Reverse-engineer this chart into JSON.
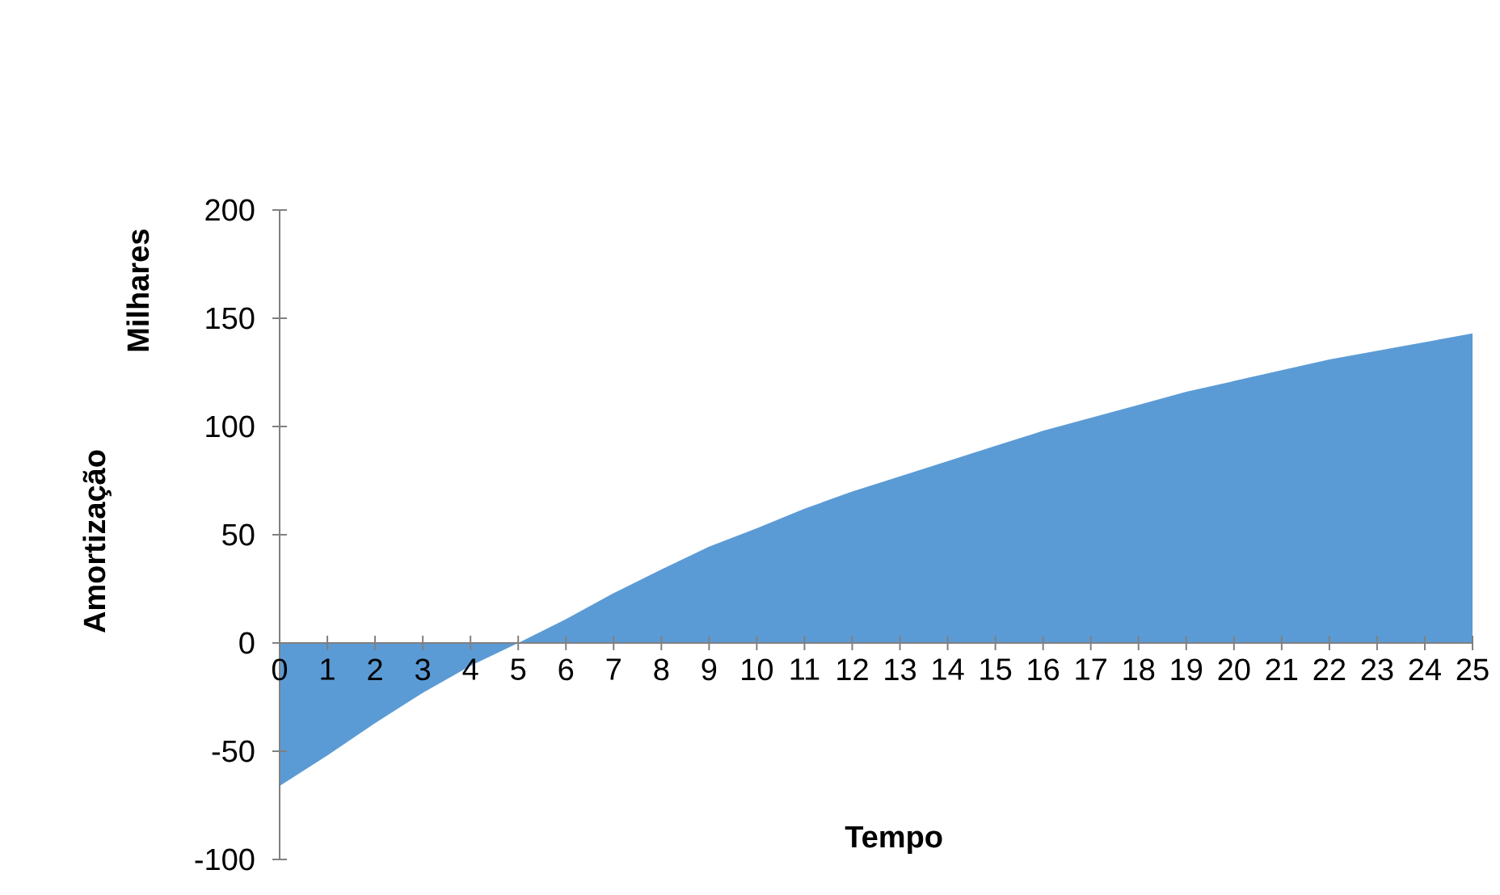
{
  "chart_data": {
    "type": "area",
    "xlabel": "Tempo",
    "ylabel": "Amortização",
    "annotations": [
      "Milhares"
    ],
    "categories": [
      "0",
      "1",
      "2",
      "3",
      "4",
      "5",
      "6",
      "7",
      "8",
      "9",
      "10",
      "11",
      "12",
      "13",
      "14",
      "15",
      "16",
      "17",
      "18",
      "19",
      "20",
      "21",
      "22",
      "23",
      "24",
      "25"
    ],
    "values": [
      -66,
      -52,
      -37,
      -23,
      -10.5,
      0,
      11,
      23,
      34,
      44.5,
      53,
      62,
      70,
      77,
      84,
      91,
      98,
      104,
      110,
      116,
      121,
      126,
      131,
      135,
      139,
      143
    ],
    "color": "#5b9bd5",
    "ylim": [
      -100,
      200
    ],
    "yticks": [
      -100,
      -50,
      0,
      50,
      100,
      150,
      200
    ]
  }
}
